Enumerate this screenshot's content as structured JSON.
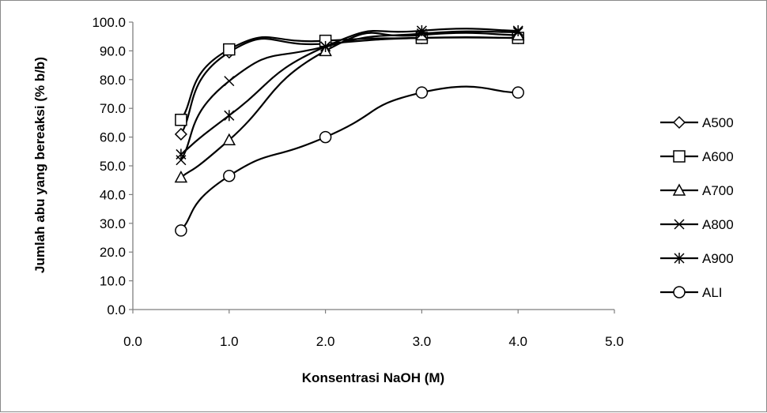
{
  "chart_data": {
    "type": "line",
    "title": "",
    "xlabel": "Konsentrasi NaOH (M)",
    "ylabel": "Jumlah abu yang bereaksi (% b/b)",
    "xlim": [
      0,
      5
    ],
    "ylim": [
      0,
      100
    ],
    "x_ticks": [
      "0.0",
      "1.0",
      "2.0",
      "3.0",
      "4.0",
      "5.0"
    ],
    "y_ticks": [
      "0.0",
      "10.0",
      "20.0",
      "30.0",
      "40.0",
      "50.0",
      "60.0",
      "70.0",
      "80.0",
      "90.0",
      "100.0"
    ],
    "x_tick_values": [
      0,
      1,
      2,
      3,
      4,
      5
    ],
    "y_tick_values": [
      0,
      10,
      20,
      30,
      40,
      50,
      60,
      70,
      80,
      90,
      100
    ],
    "grid": false,
    "legend_position": "right",
    "line_color": "#000000",
    "series": [
      {
        "name": "A500",
        "marker": "diamond",
        "x": [
          0.5,
          1.0,
          2.0,
          3.0,
          4.0
        ],
        "y": [
          61.0,
          89.5,
          92.5,
          94.5,
          94.5
        ]
      },
      {
        "name": "A600",
        "marker": "square",
        "x": [
          0.5,
          1.0,
          2.0,
          3.0,
          4.0
        ],
        "y": [
          66.0,
          90.5,
          93.5,
          94.5,
          94.5
        ]
      },
      {
        "name": "A700",
        "marker": "triangle",
        "x": [
          0.5,
          1.0,
          2.0,
          3.0,
          4.0
        ],
        "y": [
          46.0,
          59.0,
          90.0,
          95.5,
          95.5
        ]
      },
      {
        "name": "A800",
        "marker": "x",
        "x": [
          0.5,
          1.0,
          2.0,
          3.0,
          4.0
        ],
        "y": [
          52.0,
          79.5,
          91.5,
          96.0,
          96.5
        ]
      },
      {
        "name": "A900",
        "marker": "star",
        "x": [
          0.5,
          1.0,
          2.0,
          3.0,
          4.0
        ],
        "y": [
          54.0,
          67.5,
          91.5,
          97.0,
          97.0
        ]
      },
      {
        "name": "ALI",
        "marker": "circle",
        "x": [
          0.5,
          1.0,
          2.0,
          3.0,
          4.0
        ],
        "y": [
          27.5,
          46.5,
          60.0,
          75.5,
          75.5
        ]
      }
    ]
  }
}
